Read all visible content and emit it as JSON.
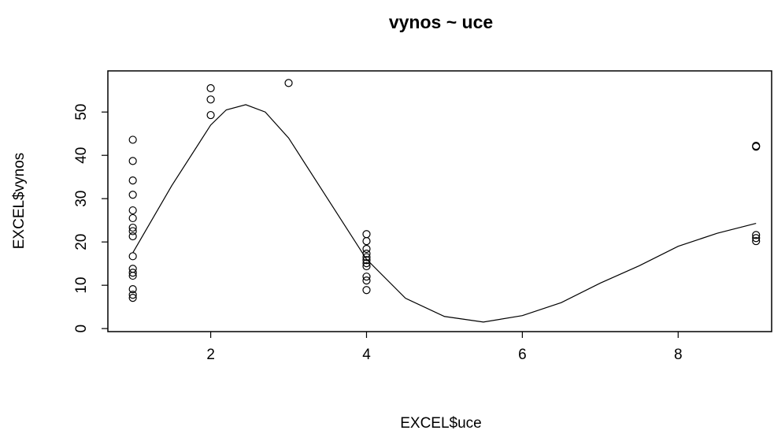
{
  "chart_data": {
    "type": "scatter",
    "title": "vynos ~ uce",
    "x_label": "EXCEL$uce",
    "y_label": "EXCEL$vynos",
    "xlim": [
      0.68,
      9.2
    ],
    "xticks": [
      2,
      4,
      6,
      8
    ],
    "ylim": [
      -0.7,
      59.5
    ],
    "yticks": [
      0,
      10,
      20,
      30,
      40,
      50
    ],
    "series": [
      {
        "kind": "points",
        "color": "#000000",
        "x": [
          1,
          1,
          1,
          1,
          1,
          1,
          1,
          1,
          1,
          1,
          1,
          1,
          1,
          1,
          1,
          1,
          2,
          2,
          2,
          3,
          4,
          4,
          4,
          4,
          4,
          4,
          4,
          4,
          4,
          4,
          4,
          9,
          9,
          9,
          9,
          9
        ],
        "values": [
          43.6,
          38.7,
          34.2,
          30.9,
          27.3,
          25.5,
          23.3,
          22.5,
          21.3,
          16.7,
          13.8,
          12.9,
          12.2,
          9.1,
          7.8,
          7.1,
          55.5,
          52.9,
          49.3,
          56.7,
          21.8,
          20.2,
          18.4,
          17.3,
          16.5,
          15.8,
          15.1,
          14.4,
          12,
          11.1,
          8.9,
          42.2,
          42,
          21.6,
          20.9,
          20.2
        ]
      },
      {
        "kind": "line",
        "color": "#000000",
        "x": [
          1,
          1.5,
          2,
          2.2,
          2.45,
          2.7,
          3,
          3.5,
          4,
          4.5,
          5,
          5.5,
          6,
          6.5,
          7,
          7.5,
          8,
          8.5,
          9
        ],
        "values": [
          17.5,
          33,
          47,
          50.5,
          51.7,
          50,
          44,
          30,
          16,
          7,
          2.8,
          1.5,
          3,
          6,
          10.5,
          14.5,
          19,
          22,
          24.3
        ]
      }
    ]
  }
}
